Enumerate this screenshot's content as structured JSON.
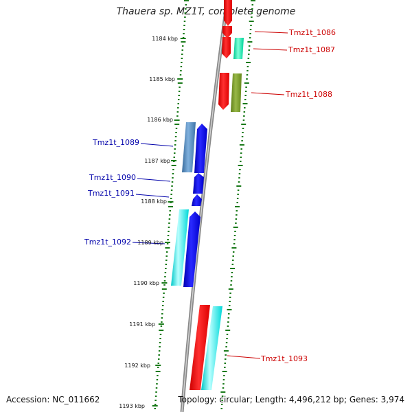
{
  "title": "Thauera sp. MZ1T, complete genome",
  "footer": {
    "accession": "Accession: NC_011662",
    "summary": "Topology: circular; Length: 4,496,212 bp; Genes: 3,974"
  },
  "ruler": {
    "ticks": [
      "1184 kbp",
      "1185 kbp",
      "1186 kbp",
      "1187 kbp",
      "1188 kbp",
      "1189 kbp",
      "1190 kbp",
      "1191 kbp",
      "1192 kbp",
      "1193 kbp"
    ]
  },
  "gene_labels": {
    "forward": [
      "Tmz1t_1086",
      "Tmz1t_1087",
      "Tmz1t_1088",
      "Tmz1t_1093"
    ],
    "reverse": [
      "Tmz1t_1089",
      "Tmz1t_1090",
      "Tmz1t_1091",
      "Tmz1t_1092"
    ]
  },
  "colors": {
    "forward_label": "#cc0000",
    "reverse_label": "#0000aa",
    "backbone": "#999999",
    "ticks": "#1a7a1a",
    "red": "#ff0000",
    "blue": "#0000ee",
    "cyan": "#00e5e5",
    "steel": "#4a7fb0",
    "olive": "#6f8f20",
    "teal": "#00e0a0"
  }
}
